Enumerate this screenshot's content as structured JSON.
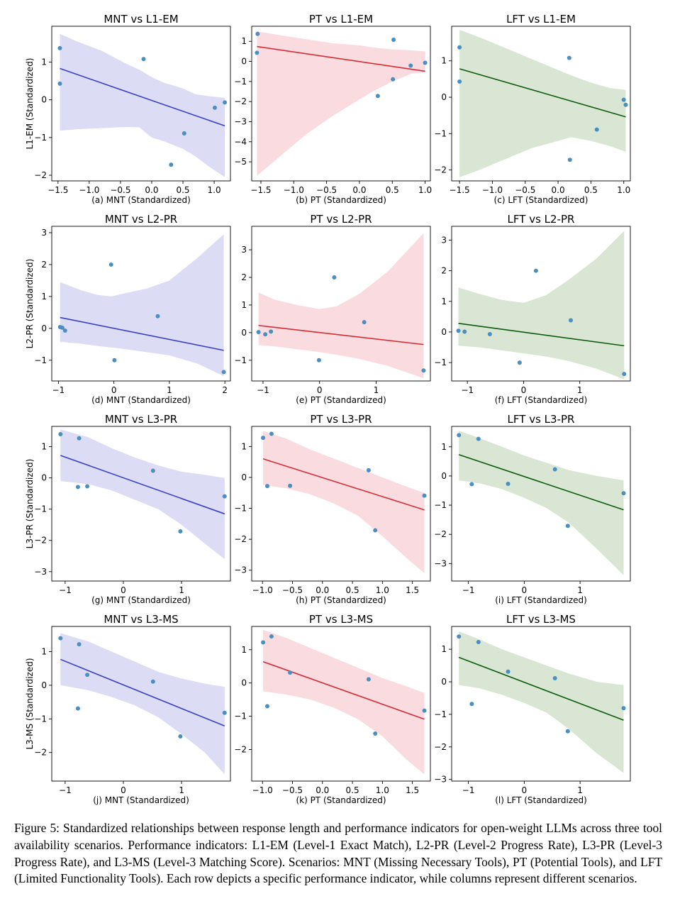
{
  "colors": {
    "MNT": {
      "line": "#3a3fc4",
      "band": "#dcdcf4"
    },
    "PT": {
      "line": "#d62d35",
      "band": "#f9dbe0"
    },
    "LFT": {
      "line": "#0f5a0f",
      "band": "#d8e6d3"
    },
    "point": "#4a8fc2"
  },
  "caption": "Figure 5: Standardized relationships between response length and performance indicators for open-weight LLMs across three tool availability scenarios. Performance indicators: L1-EM (Level-1 Exact Match), L2-PR (Level-2 Progress Rate), L3-PR (Level-3 Progress Rate), and L3-MS (Level-3 Matching Score). Scenarios: MNT (Missing Necessary Tools), PT (Potential Tools), and LFT (Limited Functionality Tools). Each row depicts a specific performance indicator, while columns represent different scenarios.",
  "chart_data": [
    {
      "type": "scatter",
      "scenario": "MNT",
      "title": "MNT vs L1-EM",
      "xlabel": "(a) MNT (Standardized)",
      "ylabel": "L1-EM (Standardized)",
      "xlim": [
        -1.6,
        1.26
      ],
      "ylim": [
        -2.15,
        1.95
      ],
      "xticks": [
        -1.5,
        -1.0,
        -0.5,
        0.0,
        0.5,
        1.0
      ],
      "yticks": [
        -2,
        -1,
        0,
        1
      ],
      "tick_format": "1",
      "points": [
        [
          -1.47,
          1.37
        ],
        [
          -1.47,
          0.43
        ],
        [
          -0.13,
          1.08
        ],
        [
          0.31,
          -1.72
        ],
        [
          0.52,
          -0.89
        ],
        [
          1.01,
          -0.21
        ],
        [
          1.17,
          -0.07
        ]
      ],
      "fit": [
        [
          -1.47,
          0.83
        ],
        [
          1.17,
          -0.69
        ]
      ],
      "band": {
        "x": [
          -1.47,
          -1.2,
          -0.8,
          -0.4,
          -0.2,
          0.0,
          0.2,
          0.5,
          0.7,
          0.9,
          1.17
        ],
        "upper": [
          1.75,
          1.55,
          1.3,
          0.95,
          0.8,
          0.6,
          0.45,
          0.3,
          0.15,
          0.1,
          0.05
        ],
        "lower": [
          -0.82,
          -0.78,
          -0.75,
          -0.72,
          -0.73,
          -1.0,
          -1.1,
          -1.3,
          -1.5,
          -1.75,
          -2.05
        ]
      }
    },
    {
      "type": "scatter",
      "scenario": "PT",
      "title": "PT vs L1-EM",
      "xlabel": "(b) PT (Standardized)",
      "ylabel": "",
      "xlim": [
        -1.64,
        1.08
      ],
      "ylim": [
        -5.95,
        1.75
      ],
      "xticks": [
        -1.5,
        -1.0,
        -0.5,
        0.0,
        0.5,
        1.0
      ],
      "yticks": [
        -5,
        -4,
        -3,
        -2,
        -1,
        0,
        1
      ],
      "tick_format": "1",
      "points": [
        [
          -1.55,
          1.37
        ],
        [
          -1.56,
          0.43
        ],
        [
          0.28,
          -1.72
        ],
        [
          0.51,
          -0.89
        ],
        [
          0.52,
          1.08
        ],
        [
          0.78,
          -0.21
        ],
        [
          1.0,
          -0.07
        ]
      ],
      "fit": [
        [
          -1.56,
          0.74
        ],
        [
          1.0,
          -0.49
        ]
      ],
      "band": {
        "x": [
          -1.56,
          -1.2,
          -0.8,
          -0.4,
          0.0,
          0.2,
          0.5,
          0.8,
          1.0
        ],
        "upper": [
          1.5,
          1.3,
          1.1,
          0.9,
          0.8,
          0.7,
          0.6,
          0.55,
          0.5
        ],
        "lower": [
          -5.7,
          -4.7,
          -3.6,
          -2.7,
          -1.9,
          -1.5,
          -1.0,
          -0.6,
          -0.55
        ]
      }
    },
    {
      "type": "scatter",
      "scenario": "LFT",
      "title": "LFT vs L1-EM",
      "xlabel": "(c) LFT (Standardized)",
      "ylabel": "",
      "xlim": [
        -1.62,
        1.1
      ],
      "ylim": [
        -2.3,
        1.95
      ],
      "xticks": [
        -1.5,
        -1.0,
        -0.5,
        0.0,
        0.5,
        1.0
      ],
      "yticks": [
        -2,
        -1,
        0,
        1
      ],
      "tick_format": "1",
      "points": [
        [
          -1.5,
          1.37
        ],
        [
          -1.5,
          0.43
        ],
        [
          0.17,
          1.08
        ],
        [
          0.18,
          -1.72
        ],
        [
          0.59,
          -0.89
        ],
        [
          1.0,
          -0.07
        ],
        [
          1.03,
          -0.21
        ]
      ],
      "fit": [
        [
          -1.5,
          0.78
        ],
        [
          1.03,
          -0.54
        ]
      ],
      "band": {
        "x": [
          -1.5,
          -1.2,
          -0.8,
          -0.4,
          0.0,
          0.2,
          0.5,
          0.8,
          1.03
        ],
        "upper": [
          1.85,
          1.65,
          1.35,
          1.05,
          0.75,
          0.6,
          0.4,
          0.25,
          0.2
        ],
        "lower": [
          -2.2,
          -2.0,
          -1.7,
          -1.4,
          -1.2,
          -1.1,
          -1.2,
          -1.35,
          -1.5
        ]
      }
    },
    {
      "type": "scatter",
      "scenario": "MNT",
      "title": "MNT vs L2-PR",
      "xlabel": "(d) MNT (Standardized)",
      "ylabel": "L2-PR (Standardized)",
      "xlim": [
        -1.12,
        2.1
      ],
      "ylim": [
        -1.65,
        3.2
      ],
      "xticks": [
        -1,
        0,
        1,
        2
      ],
      "yticks": [
        -1,
        0,
        1,
        2,
        3
      ],
      "tick_format": "0",
      "points": [
        [
          -0.97,
          0.04
        ],
        [
          -0.93,
          0.02
        ],
        [
          -0.88,
          -0.07
        ],
        [
          -0.05,
          2.0
        ],
        [
          0.01,
          -1.0
        ],
        [
          0.79,
          0.38
        ],
        [
          1.98,
          -1.37
        ]
      ],
      "fit": [
        [
          -0.97,
          0.34
        ],
        [
          1.98,
          -0.69
        ]
      ],
      "band": {
        "x": [
          -0.97,
          -0.6,
          -0.3,
          -0.05,
          0.2,
          0.6,
          1.0,
          1.5,
          1.98
        ],
        "upper": [
          1.45,
          1.2,
          1.05,
          1.0,
          1.1,
          1.25,
          1.5,
          2.2,
          2.95
        ],
        "lower": [
          -0.42,
          -0.48,
          -0.55,
          -0.6,
          -0.65,
          -0.75,
          -0.85,
          -1.1,
          -1.5
        ]
      }
    },
    {
      "type": "scatter",
      "scenario": "PT",
      "title": "PT vs L2-PR",
      "xlabel": "(e) PT (Standardized)",
      "ylabel": "",
      "xlim": [
        -1.2,
        1.96
      ],
      "ylim": [
        -1.75,
        3.85
      ],
      "xticks": [
        -1,
        0,
        1
      ],
      "yticks": [
        -1,
        0,
        1,
        2,
        3
      ],
      "tick_format": "0",
      "points": [
        [
          -1.08,
          0.02
        ],
        [
          -0.96,
          -0.06
        ],
        [
          -0.86,
          0.04
        ],
        [
          -0.01,
          -1.0
        ],
        [
          0.26,
          2.0
        ],
        [
          0.79,
          0.38
        ],
        [
          1.84,
          -1.37
        ]
      ],
      "fit": [
        [
          -1.08,
          0.26
        ],
        [
          1.84,
          -0.43
        ]
      ],
      "band": {
        "x": [
          -1.08,
          -0.8,
          -0.4,
          0.0,
          0.3,
          0.7,
          1.2,
          1.84
        ],
        "upper": [
          1.45,
          1.2,
          1.0,
          0.85,
          0.95,
          1.4,
          2.2,
          3.6
        ],
        "lower": [
          -0.45,
          -0.5,
          -0.6,
          -0.7,
          -0.8,
          -0.95,
          -1.2,
          -1.65
        ]
      }
    },
    {
      "type": "scatter",
      "scenario": "LFT",
      "title": "LFT vs L2-PR",
      "xlabel": "(f) LFT (Standardized)",
      "ylabel": "",
      "xlim": [
        -1.28,
        1.9
      ],
      "ylim": [
        -1.6,
        3.45
      ],
      "xticks": [
        -1,
        0,
        1
      ],
      "yticks": [
        -1,
        0,
        1,
        2,
        3
      ],
      "tick_format": "0",
      "points": [
        [
          -1.16,
          0.04
        ],
        [
          -1.05,
          0.01
        ],
        [
          -0.6,
          -0.07
        ],
        [
          -0.07,
          -1.0
        ],
        [
          0.22,
          2.0
        ],
        [
          0.84,
          0.38
        ],
        [
          1.79,
          -1.37
        ]
      ],
      "fit": [
        [
          -1.16,
          0.28
        ],
        [
          1.79,
          -0.45
        ]
      ],
      "band": {
        "x": [
          -1.16,
          -0.8,
          -0.4,
          0.0,
          0.4,
          0.8,
          1.3,
          1.79
        ],
        "upper": [
          1.45,
          1.25,
          1.05,
          0.95,
          1.2,
          1.7,
          2.4,
          3.3
        ],
        "lower": [
          -0.45,
          -0.5,
          -0.6,
          -0.7,
          -0.8,
          -0.95,
          -1.2,
          -1.55
        ]
      }
    },
    {
      "type": "scatter",
      "scenario": "MNT",
      "title": "MNT vs L3-PR",
      "xlabel": "(g) MNT (Standardized)",
      "ylabel": "L3-PR (Standardized)",
      "xlim": [
        -1.23,
        1.84
      ],
      "ylim": [
        -3.3,
        1.65
      ],
      "xticks": [
        -1,
        0,
        1
      ],
      "yticks": [
        -3,
        -2,
        -1,
        0,
        1
      ],
      "tick_format": "0",
      "points": [
        [
          -1.08,
          1.4
        ],
        [
          -0.78,
          -0.29
        ],
        [
          -0.76,
          1.27
        ],
        [
          -0.62,
          -0.27
        ],
        [
          0.51,
          0.23
        ],
        [
          0.98,
          -1.71
        ],
        [
          1.74,
          -0.59
        ]
      ],
      "fit": [
        [
          -1.08,
          0.72
        ],
        [
          1.74,
          -1.15
        ]
      ],
      "band": {
        "x": [
          -1.08,
          -0.6,
          -0.2,
          0.2,
          0.6,
          1.0,
          1.4,
          1.74
        ],
        "upper": [
          1.55,
          1.3,
          0.95,
          0.65,
          0.4,
          0.2,
          0.1,
          0.0
        ],
        "lower": [
          -0.1,
          -0.2,
          -0.4,
          -0.7,
          -1.0,
          -1.5,
          -2.1,
          -2.6
        ]
      }
    },
    {
      "type": "scatter",
      "scenario": "PT",
      "title": "PT vs L3-PR",
      "xlabel": "(h) PT (Standardized)",
      "ylabel": "",
      "xlim": [
        -1.18,
        1.8
      ],
      "ylim": [
        -3.35,
        1.65
      ],
      "xticks": [
        -1.0,
        -0.5,
        0.0,
        0.5,
        1.0,
        1.5
      ],
      "yticks": [
        -3,
        -2,
        -1,
        0,
        1
      ],
      "tick_format": "1",
      "points": [
        [
          -0.99,
          1.28
        ],
        [
          -0.92,
          -0.28
        ],
        [
          -0.85,
          1.41
        ],
        [
          -0.54,
          -0.27
        ],
        [
          0.77,
          0.23
        ],
        [
          0.88,
          -1.71
        ],
        [
          1.7,
          -0.59
        ]
      ],
      "fit": [
        [
          -0.99,
          0.6
        ],
        [
          1.7,
          -1.05
        ]
      ],
      "band": {
        "x": [
          -0.99,
          -0.6,
          -0.2,
          0.2,
          0.6,
          1.0,
          1.4,
          1.7
        ],
        "upper": [
          1.5,
          1.25,
          0.9,
          0.6,
          0.3,
          0.0,
          -0.3,
          -0.5
        ],
        "lower": [
          -0.25,
          -0.35,
          -0.55,
          -0.85,
          -1.25,
          -1.9,
          -2.6,
          -3.1
        ]
      }
    },
    {
      "type": "scatter",
      "scenario": "LFT",
      "title": "LFT vs L3-PR",
      "xlabel": "(i) LFT (Standardized)",
      "ylabel": "",
      "xlim": [
        -1.3,
        1.9
      ],
      "ylim": [
        -3.6,
        1.7
      ],
      "xticks": [
        -1,
        0,
        1
      ],
      "yticks": [
        -3,
        -2,
        -1,
        0,
        1
      ],
      "tick_format": "0",
      "points": [
        [
          -1.17,
          1.4
        ],
        [
          -0.94,
          -0.28
        ],
        [
          -0.82,
          1.27
        ],
        [
          -0.29,
          -0.27
        ],
        [
          0.55,
          0.23
        ],
        [
          0.78,
          -1.71
        ],
        [
          1.78,
          -0.59
        ]
      ],
      "fit": [
        [
          -1.17,
          0.73
        ],
        [
          1.78,
          -1.16
        ]
      ],
      "band": {
        "x": [
          -1.17,
          -0.8,
          -0.4,
          0.0,
          0.4,
          0.8,
          1.3,
          1.78
        ],
        "upper": [
          1.55,
          1.3,
          1.0,
          0.7,
          0.45,
          0.2,
          0.0,
          -0.15
        ],
        "lower": [
          -0.15,
          -0.25,
          -0.45,
          -0.75,
          -1.1,
          -1.6,
          -2.5,
          -3.4
        ]
      }
    },
    {
      "type": "scatter",
      "scenario": "MNT",
      "title": "MNT vs L3-MS",
      "xlabel": "(j) MNT (Standardized)",
      "ylabel": "L3-MS (Standardized)",
      "xlim": [
        -1.23,
        1.84
      ],
      "ylim": [
        -2.85,
        1.75
      ],
      "xticks": [
        -1,
        0,
        1
      ],
      "yticks": [
        -2,
        -1,
        0,
        1
      ],
      "tick_format": "0",
      "points": [
        [
          -1.08,
          1.4
        ],
        [
          -0.78,
          -0.69
        ],
        [
          -0.76,
          1.22
        ],
        [
          -0.62,
          0.31
        ],
        [
          0.51,
          0.11
        ],
        [
          0.98,
          -1.52
        ],
        [
          1.74,
          -0.82
        ]
      ],
      "fit": [
        [
          -1.08,
          0.77
        ],
        [
          1.74,
          -1.21
        ]
      ],
      "band": {
        "x": [
          -1.08,
          -0.6,
          -0.2,
          0.2,
          0.6,
          1.0,
          1.4,
          1.74
        ],
        "upper": [
          1.55,
          1.3,
          1.0,
          0.7,
          0.4,
          0.2,
          0.05,
          -0.05
        ],
        "lower": [
          0.0,
          -0.15,
          -0.35,
          -0.6,
          -0.95,
          -1.45,
          -2.0,
          -2.65
        ]
      }
    },
    {
      "type": "scatter",
      "scenario": "PT",
      "title": "PT vs L3-MS",
      "xlabel": "(k) PT (Standardized)",
      "ylabel": "",
      "xlim": [
        -1.18,
        1.8
      ],
      "ylim": [
        -2.95,
        1.7
      ],
      "xticks": [
        -1.0,
        -0.5,
        0.0,
        0.5,
        1.0,
        1.5
      ],
      "yticks": [
        -2,
        -1,
        0,
        1
      ],
      "tick_format": "1",
      "points": [
        [
          -0.99,
          1.22
        ],
        [
          -0.92,
          -0.7
        ],
        [
          -0.85,
          1.4
        ],
        [
          -0.54,
          0.31
        ],
        [
          0.77,
          0.11
        ],
        [
          0.88,
          -1.52
        ],
        [
          1.7,
          -0.83
        ]
      ],
      "fit": [
        [
          -0.99,
          0.64
        ],
        [
          1.7,
          -1.09
        ]
      ],
      "band": {
        "x": [
          -0.99,
          -0.6,
          -0.2,
          0.2,
          0.6,
          1.0,
          1.4,
          1.7
        ],
        "upper": [
          1.6,
          1.35,
          1.05,
          0.75,
          0.45,
          0.15,
          -0.1,
          -0.3
        ],
        "lower": [
          -0.25,
          -0.35,
          -0.5,
          -0.75,
          -1.1,
          -1.6,
          -2.3,
          -2.75
        ]
      }
    },
    {
      "type": "scatter",
      "scenario": "LFT",
      "title": "LFT vs L3-MS",
      "xlabel": "(l) LFT (Standardized)",
      "ylabel": "",
      "xlim": [
        -1.3,
        1.9
      ],
      "ylim": [
        -3.05,
        1.7
      ],
      "xticks": [
        -1,
        0,
        1
      ],
      "yticks": [
        -3,
        -2,
        -1,
        0,
        1
      ],
      "tick_format": "0",
      "points": [
        [
          -1.17,
          1.39
        ],
        [
          -0.94,
          -0.68
        ],
        [
          -0.82,
          1.22
        ],
        [
          -0.29,
          0.31
        ],
        [
          0.55,
          0.11
        ],
        [
          0.78,
          -1.52
        ],
        [
          1.78,
          -0.81
        ]
      ],
      "fit": [
        [
          -1.17,
          0.75
        ],
        [
          1.78,
          -1.18
        ]
      ],
      "band": {
        "x": [
          -1.17,
          -0.8,
          -0.4,
          0.0,
          0.4,
          0.8,
          1.3,
          1.78
        ],
        "upper": [
          1.55,
          1.3,
          1.0,
          0.75,
          0.5,
          0.25,
          0.0,
          -0.1
        ],
        "lower": [
          -0.1,
          -0.2,
          -0.4,
          -0.65,
          -0.95,
          -1.45,
          -2.2,
          -2.8
        ]
      }
    }
  ]
}
